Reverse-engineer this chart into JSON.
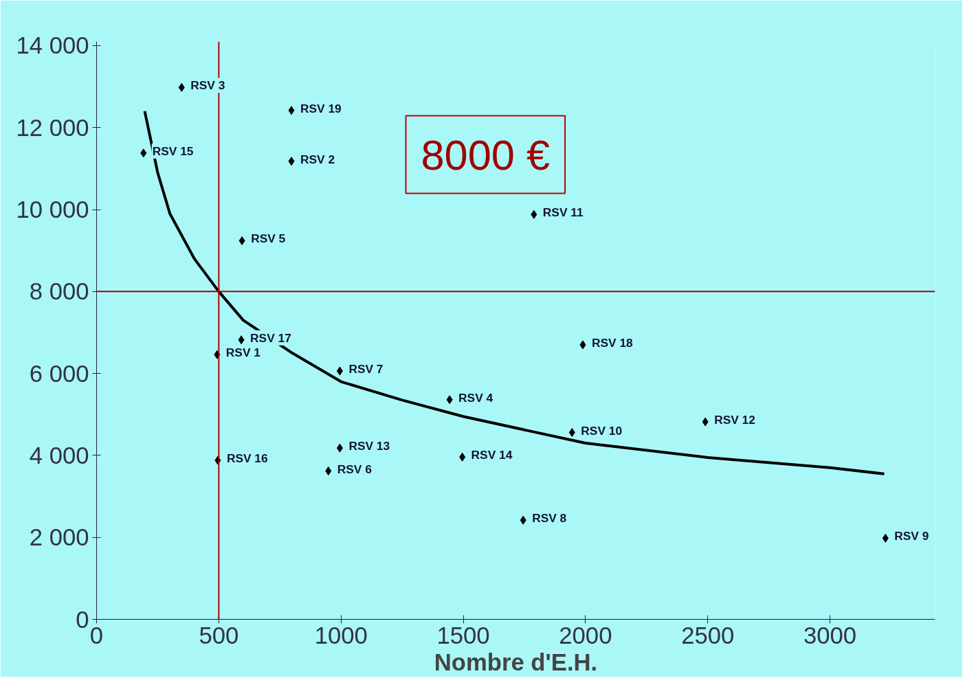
{
  "chart_data": {
    "type": "scatter",
    "xlabel": "Nombre d'E.H.",
    "xlim": [
      0,
      3430
    ],
    "ylim": [
      0,
      14100
    ],
    "xticks": [
      0,
      500,
      1000,
      1500,
      2000,
      2500,
      3000
    ],
    "yticks": [
      0,
      {
        "value": 2000,
        "label": "2 000"
      },
      {
        "value": 4000,
        "label": "4 000"
      },
      {
        "value": 6000,
        "label": "6 000"
      },
      {
        "value": 8000,
        "label": "8 000"
      },
      {
        "value": 10000,
        "label": "10 000"
      },
      {
        "value": 12000,
        "label": "12 000"
      },
      {
        "value": 14000,
        "label": "14 000"
      }
    ],
    "grid": false,
    "marker": "diamond",
    "series": [
      {
        "color": "#000000",
        "x": [
          348,
          797,
          192,
          797,
          1789,
          595,
          592,
          493,
          1989,
          995,
          1444,
          1945,
          2490,
          995,
          496,
          948,
          1496,
          1745,
          3227
        ],
        "values": [
          12980,
          12420,
          11380,
          11180,
          9880,
          9240,
          6820,
          6460,
          6700,
          6060,
          5360,
          4560,
          4820,
          4180,
          3880,
          3620,
          3960,
          2420,
          1980
        ]
      },
      {
        "type": "line",
        "marker": "none",
        "line_style": "solid",
        "color": "#000000",
        "x": [
          197,
          250,
          300,
          400,
          500,
          600,
          800,
          1000,
          1250,
          1500,
          2000,
          2500,
          3000,
          3222
        ],
        "values": [
          12400,
          10900,
          9900,
          8800,
          8000,
          7300,
          6500,
          5800,
          5350,
          4950,
          4300,
          3950,
          3700,
          3550
        ]
      }
    ],
    "ref_lines": [
      {
        "axis": "x",
        "value": 500,
        "color": "#b00000"
      },
      {
        "axis": "y",
        "value": 8000,
        "color": "#b00000"
      }
    ],
    "annotations": [
      {
        "text": "RSV 3",
        "x": 348,
        "y": 12980
      },
      {
        "text": "RSV 19",
        "x": 797,
        "y": 12420
      },
      {
        "text": "RSV 15",
        "x": 192,
        "y": 11380
      },
      {
        "text": "RSV 2",
        "x": 797,
        "y": 11180
      },
      {
        "text": "RSV 11",
        "x": 1789,
        "y": 9880
      },
      {
        "text": "RSV 5",
        "x": 595,
        "y": 9240
      },
      {
        "text": "RSV 17",
        "x": 592,
        "y": 6820
      },
      {
        "text": "RSV 1",
        "x": 493,
        "y": 6460
      },
      {
        "text": "RSV 18",
        "x": 1989,
        "y": 6700
      },
      {
        "text": "RSV 7",
        "x": 995,
        "y": 6060
      },
      {
        "text": "RSV 4",
        "x": 1444,
        "y": 5360
      },
      {
        "text": "RSV 10",
        "x": 1945,
        "y": 4560
      },
      {
        "text": "RSV 12",
        "x": 2490,
        "y": 4820
      },
      {
        "text": "RSV 13",
        "x": 995,
        "y": 4180
      },
      {
        "text": "RSV 16",
        "x": 496,
        "y": 3880
      },
      {
        "text": "RSV 6",
        "x": 948,
        "y": 3620
      },
      {
        "text": "RSV 14",
        "x": 1496,
        "y": 3960
      },
      {
        "text": "RSV 8",
        "x": 1745,
        "y": 2420
      },
      {
        "text": "RSV 9",
        "x": 3227,
        "y": 1980
      },
      "8000 €"
    ]
  }
}
